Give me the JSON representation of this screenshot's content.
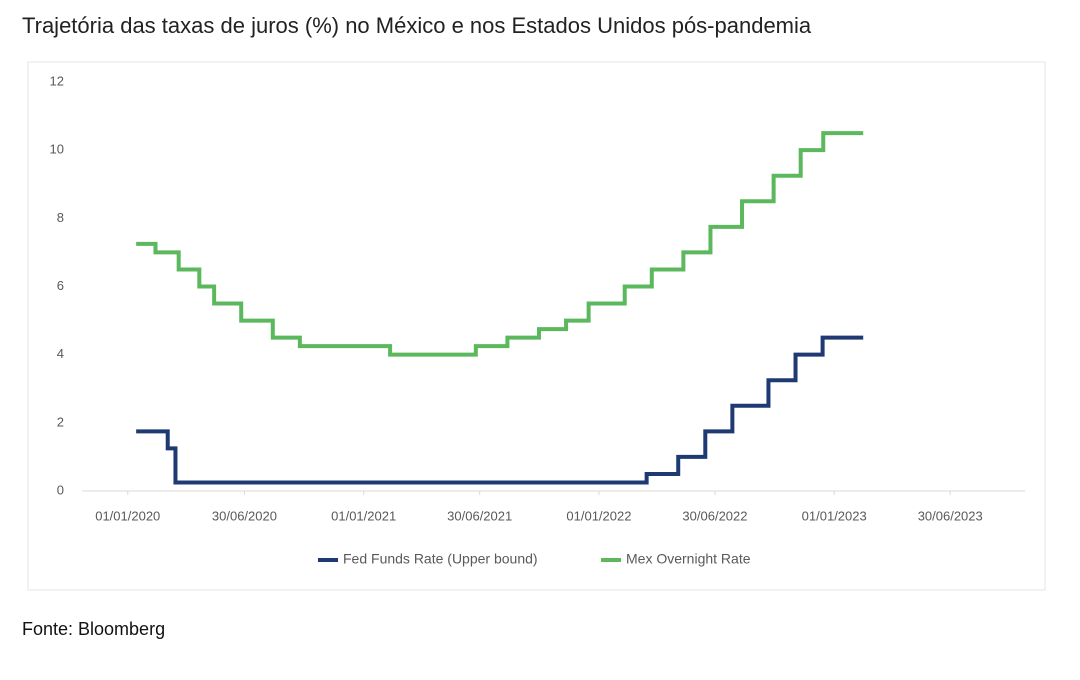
{
  "chart_data": {
    "type": "line",
    "step": true,
    "title": "Trajetória das taxas de juros (%) no México e nos Estados Unidos pós-pandemia",
    "source": "Fonte: Bloomberg",
    "xlim": [
      "2019-10-22",
      "2023-10-24"
    ],
    "xticks": [
      {
        "value": "2020-01-01",
        "label": "01/01/2020"
      },
      {
        "value": "2020-06-30",
        "label": "30/06/2020"
      },
      {
        "value": "2021-01-01",
        "label": "01/01/2021"
      },
      {
        "value": "2021-06-30",
        "label": "30/06/2021"
      },
      {
        "value": "2022-01-01",
        "label": "01/01/2022"
      },
      {
        "value": "2022-06-30",
        "label": "30/06/2022"
      },
      {
        "value": "2023-01-01",
        "label": "01/01/2023"
      },
      {
        "value": "2023-06-30",
        "label": "30/06/2023"
      }
    ],
    "ylim": [
      0,
      12
    ],
    "yticks": [
      0,
      2,
      4,
      6,
      8,
      10,
      12
    ],
    "grid": false,
    "legend": "bottom",
    "series": [
      {
        "name": "Fed Funds Rate (Upper bound)",
        "color": "#1f3a73",
        "x": [
          "2020-01-14",
          "2020-03-03",
          "2020-03-15",
          "2022-03-16",
          "2022-05-04",
          "2022-06-15",
          "2022-07-27",
          "2022-09-21",
          "2022-11-02",
          "2022-12-14",
          "2023-02-15"
        ],
        "values": [
          1.75,
          1.25,
          0.25,
          0.5,
          1.0,
          1.75,
          2.5,
          3.25,
          4.0,
          4.5,
          4.5
        ]
      },
      {
        "name": "Mex Overnight Rate",
        "color": "#5cb85c",
        "x": [
          "2020-01-14",
          "2020-02-13",
          "2020-03-20",
          "2020-04-21",
          "2020-05-14",
          "2020-06-25",
          "2020-08-13",
          "2020-09-24",
          "2021-02-11",
          "2021-06-24",
          "2021-08-12",
          "2021-09-30",
          "2021-11-11",
          "2021-12-16",
          "2022-02-10",
          "2022-03-24",
          "2022-05-12",
          "2022-06-23",
          "2022-08-11",
          "2022-09-29",
          "2022-11-10",
          "2022-12-15",
          "2023-02-15"
        ],
        "values": [
          7.25,
          7.0,
          6.5,
          6.0,
          5.5,
          5.0,
          4.5,
          4.25,
          4.0,
          4.25,
          4.5,
          4.75,
          5.0,
          5.5,
          6.0,
          6.5,
          7.0,
          7.75,
          8.5,
          9.25,
          10.0,
          10.5,
          10.5
        ]
      }
    ]
  }
}
